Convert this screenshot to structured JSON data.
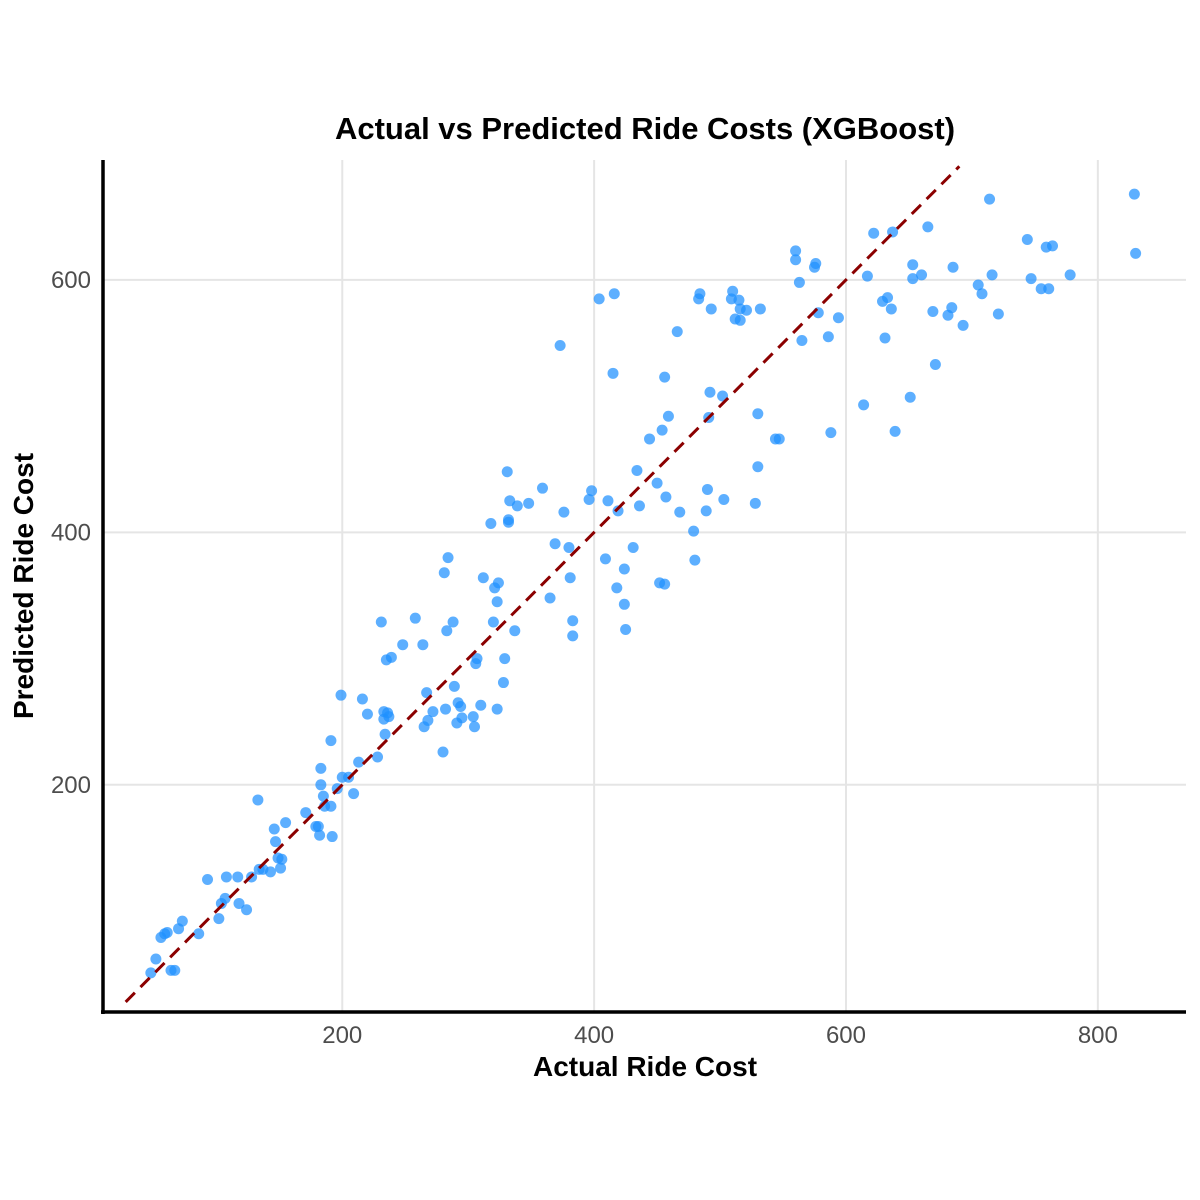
{
  "chart_data": {
    "type": "scatter",
    "title": "Actual vs Predicted Ride Costs (XGBoost)",
    "xlabel": "Actual Ride Cost",
    "ylabel": "Predicted Ride Cost",
    "xlim": [
      10,
      870
    ],
    "ylim": [
      20,
      695
    ],
    "xticks": [
      200,
      400,
      600,
      800
    ],
    "yticks": [
      200,
      400,
      600
    ],
    "grid": true,
    "colors": {
      "points": "#1e90ff",
      "reference_line": "#8b0000"
    },
    "reference_line": {
      "type": "y=x",
      "x": [
        28,
        690
      ],
      "y": [
        28,
        690
      ]
    },
    "points": [
      [
        48,
        51
      ],
      [
        52,
        62
      ],
      [
        56,
        79
      ],
      [
        59,
        82
      ],
      [
        61,
        83
      ],
      [
        64,
        53
      ],
      [
        67,
        53
      ],
      [
        70,
        86
      ],
      [
        73,
        92
      ],
      [
        86,
        82
      ],
      [
        93,
        125
      ],
      [
        102,
        94
      ],
      [
        104,
        106
      ],
      [
        107,
        110
      ],
      [
        108,
        127
      ],
      [
        117,
        127
      ],
      [
        118,
        106
      ],
      [
        124,
        101
      ],
      [
        128,
        127
      ],
      [
        133,
        188
      ],
      [
        134,
        133
      ],
      [
        137,
        133
      ],
      [
        143,
        131
      ],
      [
        146,
        165
      ],
      [
        147,
        155
      ],
      [
        149,
        142
      ],
      [
        151,
        134
      ],
      [
        152,
        141
      ],
      [
        155,
        170
      ],
      [
        171,
        178
      ],
      [
        179,
        167
      ],
      [
        181,
        167
      ],
      [
        182,
        160
      ],
      [
        183,
        200
      ],
      [
        183,
        213
      ],
      [
        185,
        191
      ],
      [
        186,
        183
      ],
      [
        191,
        183
      ],
      [
        191,
        235
      ],
      [
        192,
        159
      ],
      [
        196,
        197
      ],
      [
        199,
        271
      ],
      [
        200,
        206
      ],
      [
        205,
        206
      ],
      [
        209,
        193
      ],
      [
        213,
        218
      ],
      [
        216,
        268
      ],
      [
        220,
        256
      ],
      [
        228,
        222
      ],
      [
        231,
        329
      ],
      [
        233,
        258
      ],
      [
        233,
        252
      ],
      [
        234,
        240
      ],
      [
        235,
        299
      ],
      [
        236,
        257
      ],
      [
        237,
        254
      ],
      [
        239,
        301
      ],
      [
        248,
        311
      ],
      [
        258,
        332
      ],
      [
        264,
        311
      ],
      [
        265,
        246
      ],
      [
        267,
        273
      ],
      [
        268,
        251
      ],
      [
        272,
        258
      ],
      [
        280,
        226
      ],
      [
        281,
        368
      ],
      [
        282,
        260
      ],
      [
        283,
        322
      ],
      [
        284,
        380
      ],
      [
        288,
        329
      ],
      [
        289,
        278
      ],
      [
        291,
        249
      ],
      [
        292,
        265
      ],
      [
        294,
        262
      ],
      [
        295,
        253
      ],
      [
        304,
        254
      ],
      [
        305,
        246
      ],
      [
        306,
        296
      ],
      [
        307,
        300
      ],
      [
        310,
        263
      ],
      [
        312,
        364
      ],
      [
        318,
        407
      ],
      [
        320,
        329
      ],
      [
        321,
        356
      ],
      [
        323,
        345
      ],
      [
        323,
        260
      ],
      [
        324,
        360
      ],
      [
        328,
        281
      ],
      [
        329,
        300
      ],
      [
        331,
        448
      ],
      [
        332,
        410
      ],
      [
        332,
        408
      ],
      [
        333,
        425
      ],
      [
        337,
        322
      ],
      [
        339,
        421
      ],
      [
        348,
        423
      ],
      [
        359,
        435
      ],
      [
        365,
        348
      ],
      [
        369,
        391
      ],
      [
        373,
        548
      ],
      [
        376,
        416
      ],
      [
        380,
        388
      ],
      [
        381,
        364
      ],
      [
        383,
        330
      ],
      [
        383,
        318
      ],
      [
        396,
        426
      ],
      [
        398,
        433
      ],
      [
        404,
        585
      ],
      [
        409,
        379
      ],
      [
        411,
        425
      ],
      [
        415,
        526
      ],
      [
        416,
        589
      ],
      [
        418,
        356
      ],
      [
        419,
        417
      ],
      [
        424,
        371
      ],
      [
        424,
        343
      ],
      [
        425,
        323
      ],
      [
        431,
        388
      ],
      [
        434,
        449
      ],
      [
        436,
        421
      ],
      [
        444,
        474
      ],
      [
        450,
        439
      ],
      [
        452,
        360
      ],
      [
        454,
        481
      ],
      [
        456,
        359
      ],
      [
        456,
        523
      ],
      [
        457,
        428
      ],
      [
        459,
        492
      ],
      [
        466,
        559
      ],
      [
        468,
        416
      ],
      [
        479,
        401
      ],
      [
        480,
        378
      ],
      [
        483,
        585
      ],
      [
        484,
        589
      ],
      [
        489,
        417
      ],
      [
        490,
        434
      ],
      [
        491,
        491
      ],
      [
        492,
        511
      ],
      [
        493,
        577
      ],
      [
        502,
        508
      ],
      [
        503,
        426
      ],
      [
        509,
        585
      ],
      [
        510,
        591
      ],
      [
        512,
        569
      ],
      [
        515,
        584
      ],
      [
        516,
        568
      ],
      [
        516,
        577
      ],
      [
        521,
        576
      ],
      [
        528,
        423
      ],
      [
        530,
        452
      ],
      [
        530,
        494
      ],
      [
        532,
        577
      ],
      [
        544,
        474
      ],
      [
        547,
        474
      ],
      [
        560,
        623
      ],
      [
        560,
        616
      ],
      [
        563,
        598
      ],
      [
        565,
        552
      ],
      [
        575,
        610
      ],
      [
        576,
        613
      ],
      [
        578,
        574
      ],
      [
        586,
        555
      ],
      [
        588,
        479
      ],
      [
        594,
        570
      ],
      [
        614,
        501
      ],
      [
        617,
        603
      ],
      [
        622,
        637
      ],
      [
        629,
        583
      ],
      [
        631,
        554
      ],
      [
        633,
        586
      ],
      [
        636,
        577
      ],
      [
        637,
        638
      ],
      [
        639,
        480
      ],
      [
        651,
        507
      ],
      [
        653,
        601
      ],
      [
        653,
        612
      ],
      [
        660,
        604
      ],
      [
        665,
        642
      ],
      [
        669,
        575
      ],
      [
        671,
        533
      ],
      [
        681,
        572
      ],
      [
        684,
        578
      ],
      [
        685,
        610
      ],
      [
        693,
        564
      ],
      [
        705,
        596
      ],
      [
        708,
        589
      ],
      [
        714,
        664
      ],
      [
        716,
        604
      ],
      [
        721,
        573
      ],
      [
        744,
        632
      ],
      [
        747,
        601
      ],
      [
        755,
        593
      ],
      [
        759,
        626
      ],
      [
        761,
        593
      ],
      [
        764,
        627
      ],
      [
        778,
        604
      ],
      [
        829,
        668
      ],
      [
        830,
        621
      ]
    ]
  }
}
